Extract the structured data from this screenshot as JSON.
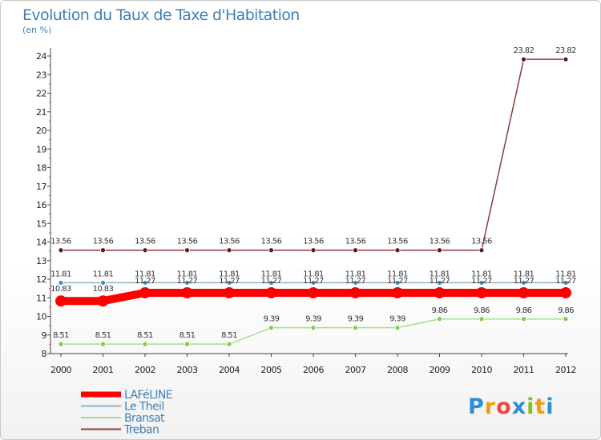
{
  "chart_data": {
    "type": "line",
    "title": "Evolution du Taux de Taxe d'Habitation",
    "subtitle": "(en %)",
    "x": [
      "2000",
      "2001",
      "2002",
      "2003",
      "2004",
      "2005",
      "2006",
      "2007",
      "2008",
      "2009",
      "2010",
      "2011",
      "2012"
    ],
    "ylim": [
      8,
      24
    ],
    "yticks": [
      "8",
      "9",
      "10",
      "11",
      "12",
      "13",
      "14",
      "15",
      "16",
      "17",
      "18",
      "19",
      "20",
      "21",
      "22",
      "23",
      "24"
    ],
    "grid": false,
    "legend_position": "bottom-left",
    "series": [
      {
        "name": "LAFéLINE",
        "color": "#ff0000",
        "emphasis": true,
        "values": [
          10.83,
          10.83,
          11.27,
          11.27,
          11.27,
          11.27,
          11.27,
          11.27,
          11.27,
          11.27,
          11.27,
          11.27,
          11.27
        ],
        "labels": [
          "10.83",
          "10.83",
          "11.27",
          "11.27",
          "11.27",
          "11.27",
          "11.27",
          "11.27",
          "11.27",
          "11.27",
          "11.27",
          "11.27",
          "11.27"
        ]
      },
      {
        "name": "Le Theil",
        "color": "#8fb3c8",
        "marker": "#3d8fc4",
        "values": [
          11.81,
          11.81,
          11.81,
          11.81,
          11.81,
          11.81,
          11.81,
          11.81,
          11.81,
          11.81,
          11.81,
          11.81,
          11.81
        ],
        "labels": [
          "11.81",
          "11.81",
          "11.81",
          "11.81",
          "11.81",
          "11.81",
          "11.81",
          "11.81",
          "11.81",
          "11.81",
          "11.81",
          "11.81",
          "11.81"
        ]
      },
      {
        "name": "Bransat",
        "color": "#a9dc8a",
        "marker": "#7fcc4a",
        "values": [
          8.51,
          8.51,
          8.51,
          8.51,
          8.51,
          9.39,
          9.39,
          9.39,
          9.39,
          9.86,
          9.86,
          9.86,
          9.86
        ],
        "labels": [
          "8.51",
          "8.51",
          "8.51",
          "8.51",
          "8.51",
          "9.39",
          "9.39",
          "9.39",
          "9.39",
          "9.86",
          "9.86",
          "9.86",
          "9.86"
        ]
      },
      {
        "name": "Treban",
        "color": "#8a3a3a",
        "marker": "#5a1a1a",
        "values": [
          13.56,
          13.56,
          13.56,
          13.56,
          13.56,
          13.56,
          13.56,
          13.56,
          13.56,
          13.56,
          13.56,
          23.82,
          23.82
        ],
        "labels": [
          "13.56",
          "13.56",
          "13.56",
          "13.56",
          "13.56",
          "13.56",
          "13.56",
          "13.56",
          "13.56",
          "13.56",
          "13.56",
          "23.82",
          "23.82"
        ]
      }
    ]
  },
  "brand": {
    "name": "Proxiti",
    "letters": [
      "P",
      "r",
      "o",
      "x",
      "i",
      "t",
      "i"
    ],
    "colors": [
      "#2a8fd6",
      "#f39c12",
      "#e74c3c",
      "#2a8fd6",
      "#7fbf2a",
      "#f39c12",
      "#2a8fd6"
    ]
  }
}
